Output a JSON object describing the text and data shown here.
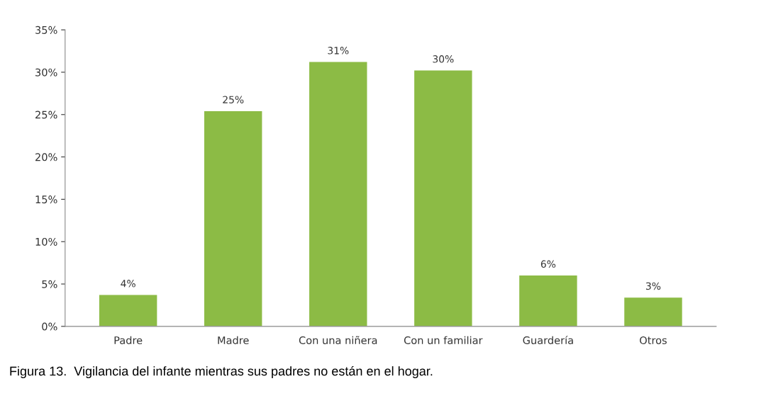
{
  "chart_data": {
    "type": "bar",
    "categories": [
      "Padre",
      "Madre",
      "Con una niñera",
      "Con un familiar",
      "Guardería",
      "Otros"
    ],
    "values": [
      3.7,
      25.4,
      31.2,
      30.2,
      6.0,
      3.4
    ],
    "value_labels": [
      "4%",
      "25%",
      "31%",
      "30%",
      "6%",
      "3%"
    ],
    "color": "#8cbb45",
    "ylim": [
      0,
      35
    ],
    "yticks": [
      {
        "value": 0,
        "label": "0%"
      },
      {
        "value": 5,
        "label": "5%"
      },
      {
        "value": 10,
        "label": "10%"
      },
      {
        "value": 15,
        "label": "15%"
      },
      {
        "value": 20,
        "label": "20%"
      },
      {
        "value": 25,
        "label": "25%"
      },
      {
        "value": 30,
        "label": "30%"
      },
      {
        "value": 35,
        "label": "35%"
      }
    ],
    "grid": false,
    "annotations": [
      "Figura 13.  Vigilancia del infante mientras sus padres no están en el hogar."
    ]
  }
}
